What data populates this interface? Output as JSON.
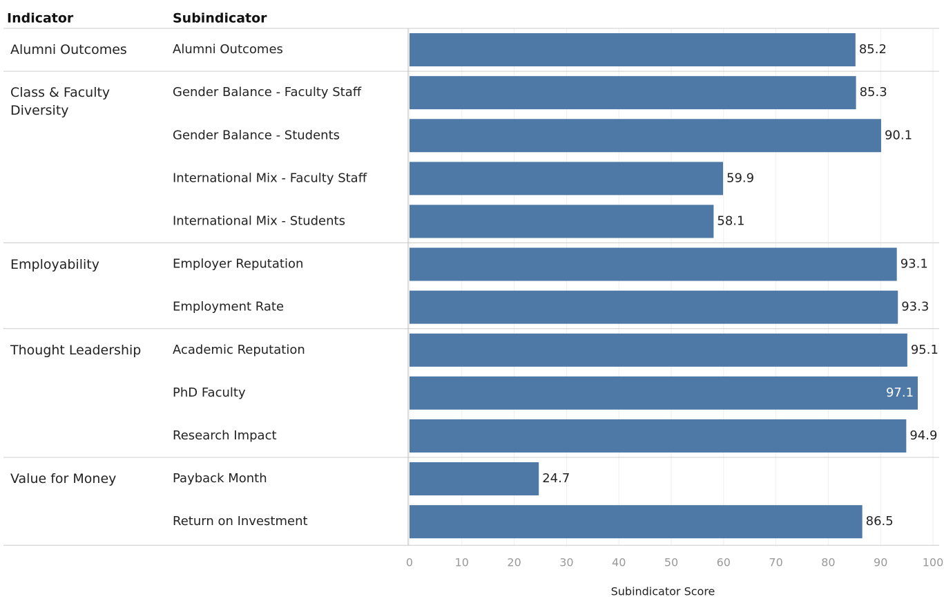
{
  "chart_data": {
    "type": "bar",
    "color": "#4e79a7",
    "columns": [
      "Indicator",
      "Subindicator"
    ],
    "xlabel": "Subindicator Score",
    "xlim": [
      0,
      100
    ],
    "xticks": [
      0,
      10,
      20,
      30,
      40,
      50,
      60,
      70,
      80,
      90,
      100
    ],
    "grid": true,
    "groups": [
      {
        "name": "Alumni Outcomes",
        "categories": [
          "Alumni Outcomes"
        ],
        "values": [
          85.2
        ]
      },
      {
        "name": "Class & Faculty Diversity",
        "categories": [
          "Gender Balance - Faculty Staff",
          "Gender Balance - Students",
          "International Mix - Faculty Staff",
          "International Mix - Students"
        ],
        "values": [
          85.3,
          90.1,
          59.9,
          58.1
        ]
      },
      {
        "name": "Employability",
        "categories": [
          "Employer Reputation",
          "Employment Rate"
        ],
        "values": [
          93.1,
          93.3
        ]
      },
      {
        "name": "Thought Leadership",
        "categories": [
          "Academic Reputation",
          "PhD Faculty",
          "Research Impact"
        ],
        "values": [
          95.1,
          97.1,
          94.9
        ]
      },
      {
        "name": "Value for Money",
        "categories": [
          "Payback Month",
          "Return on Investment"
        ],
        "values": [
          24.7,
          86.5
        ]
      }
    ]
  }
}
